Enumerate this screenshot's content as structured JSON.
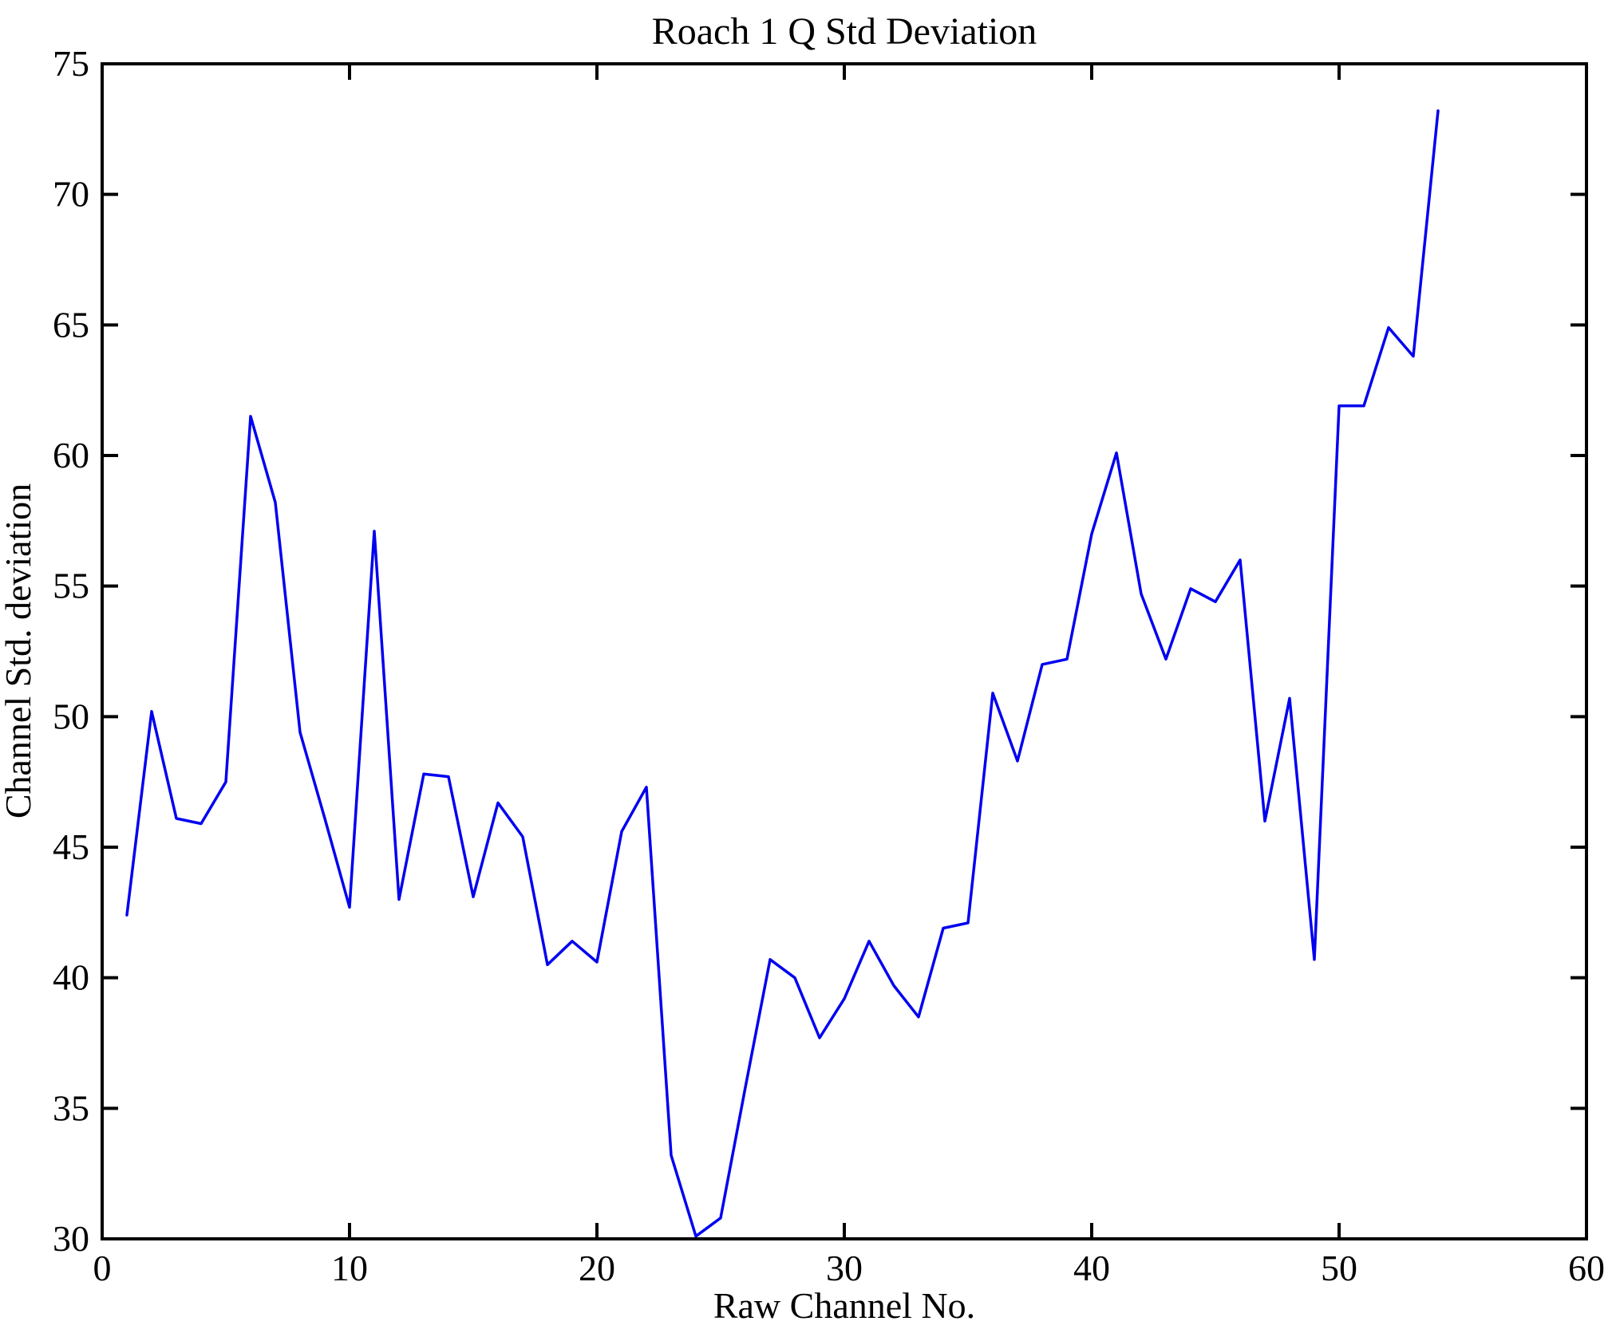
{
  "page": {
    "background": "#ffffff",
    "text_color": "#000000"
  },
  "chart_data": {
    "type": "line",
    "title": "Roach 1 Q Std Deviation",
    "xlabel": "Raw Channel No.",
    "ylabel": "Channel Std. deviation",
    "xlim": [
      0,
      60
    ],
    "ylim": [
      30,
      75
    ],
    "xticks": [
      0,
      10,
      20,
      30,
      40,
      50,
      60
    ],
    "yticks": [
      30,
      35,
      40,
      45,
      50,
      55,
      60,
      65,
      70,
      75
    ],
    "grid": false,
    "legend": null,
    "line_color": "#0000f0",
    "axis_color": "#000000",
    "series": [
      {
        "name": "channel-std-deviation",
        "x": [
          1,
          2,
          3,
          4,
          5,
          6,
          7,
          8,
          9,
          10,
          11,
          12,
          13,
          14,
          15,
          16,
          17,
          18,
          19,
          20,
          21,
          22,
          23,
          24,
          25,
          26,
          27,
          28,
          29,
          30,
          31,
          32,
          33,
          34,
          35,
          36,
          37,
          38,
          39,
          40,
          41,
          42,
          43,
          44,
          45,
          46,
          47,
          48,
          49,
          50,
          51,
          52,
          53,
          54
        ],
        "y": [
          42.4,
          50.2,
          46.1,
          45.9,
          47.5,
          61.5,
          58.2,
          49.4,
          46.1,
          42.7,
          57.1,
          43.0,
          47.8,
          47.7,
          43.1,
          46.7,
          45.4,
          40.5,
          41.4,
          40.6,
          45.6,
          47.3,
          33.2,
          30.1,
          30.8,
          35.8,
          40.7,
          40.0,
          37.7,
          39.2,
          41.4,
          39.7,
          38.5,
          41.9,
          42.1,
          50.9,
          48.3,
          52.0,
          52.2,
          57.0,
          60.1,
          54.7,
          52.2,
          54.9,
          54.4,
          56.0,
          46.0,
          50.7,
          40.7,
          61.9,
          61.9,
          64.9,
          63.8,
          73.2
        ]
      }
    ]
  }
}
